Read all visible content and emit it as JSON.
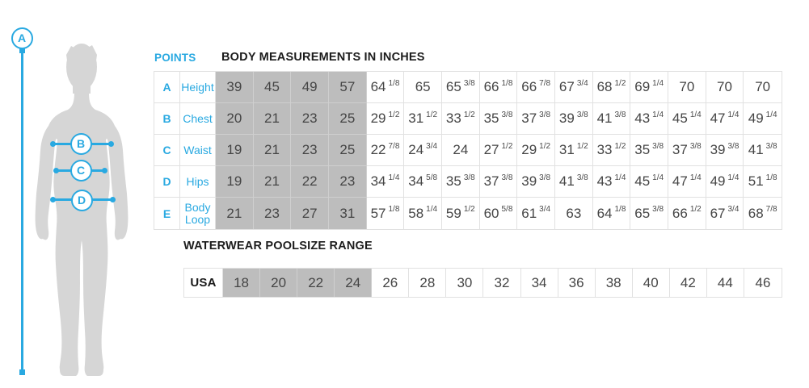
{
  "header": {
    "points_label": "POINTS"
  },
  "diagram": {
    "markers": [
      {
        "label": "A"
      },
      {
        "label": "B"
      },
      {
        "label": "C"
      },
      {
        "label": "D"
      }
    ]
  },
  "colors": {
    "accent": "#29a9e1",
    "highlight_cell": "#bdbdbd",
    "silhouette": "#d6d6d6",
    "table_border": "#e1e1e1",
    "title_text": "#1c1c1c",
    "cell_text": "#454545"
  },
  "chart_data": [
    {
      "type": "table",
      "title": "BODY MEASUREMENTS IN INCHES",
      "highlighted_columns": 4,
      "rows": [
        {
          "point": "A",
          "label": "Height",
          "values": [
            "39",
            "45",
            "49",
            "57",
            "64 1/8",
            "65",
            "65 3/8",
            "66 1/8",
            "66 7/8",
            "67 3/4",
            "68 1/2",
            "69 1/4",
            "70",
            "70",
            "70"
          ]
        },
        {
          "point": "B",
          "label": "Chest",
          "values": [
            "20",
            "21",
            "23",
            "25",
            "29 1/2",
            "31 1/2",
            "33 1/2",
            "35 3/8",
            "37 3/8",
            "39 3/8",
            "41 3/8",
            "43 1/4",
            "45 1/4",
            "47 1/4",
            "49 1/4"
          ]
        },
        {
          "point": "C",
          "label": "Waist",
          "values": [
            "19",
            "21",
            "23",
            "25",
            "22 7/8",
            "24 3/4",
            "24",
            "27 1/2",
            "29 1/2",
            "31 1/2",
            "33 1/2",
            "35 3/8",
            "37 3/8",
            "39 3/8",
            "41 3/8"
          ]
        },
        {
          "point": "D",
          "label": "Hips",
          "values": [
            "19",
            "21",
            "22",
            "23",
            "34 1/4",
            "34 5/8",
            "35 3/8",
            "37 3/8",
            "39 3/8",
            "41 3/8",
            "43 1/4",
            "45 1/4",
            "47 1/4",
            "49 1/4",
            "51 1/8"
          ]
        },
        {
          "point": "E",
          "label": "Body Loop",
          "values": [
            "21",
            "23",
            "27",
            "31",
            "57 1/8",
            "58 1/4",
            "59 1/2",
            "60 5/8",
            "61 3/4",
            "63",
            "64 1/8",
            "65 3/8",
            "66 1/2",
            "67 3/4",
            "68 7/8"
          ]
        }
      ]
    },
    {
      "type": "table",
      "title": "WATERWEAR POOLSIZE RANGE",
      "highlighted_columns": 4,
      "rows": [
        {
          "label": "USA",
          "values": [
            "18",
            "20",
            "22",
            "24",
            "26",
            "28",
            "30",
            "32",
            "34",
            "36",
            "38",
            "40",
            "42",
            "44",
            "46"
          ]
        }
      ]
    }
  ]
}
